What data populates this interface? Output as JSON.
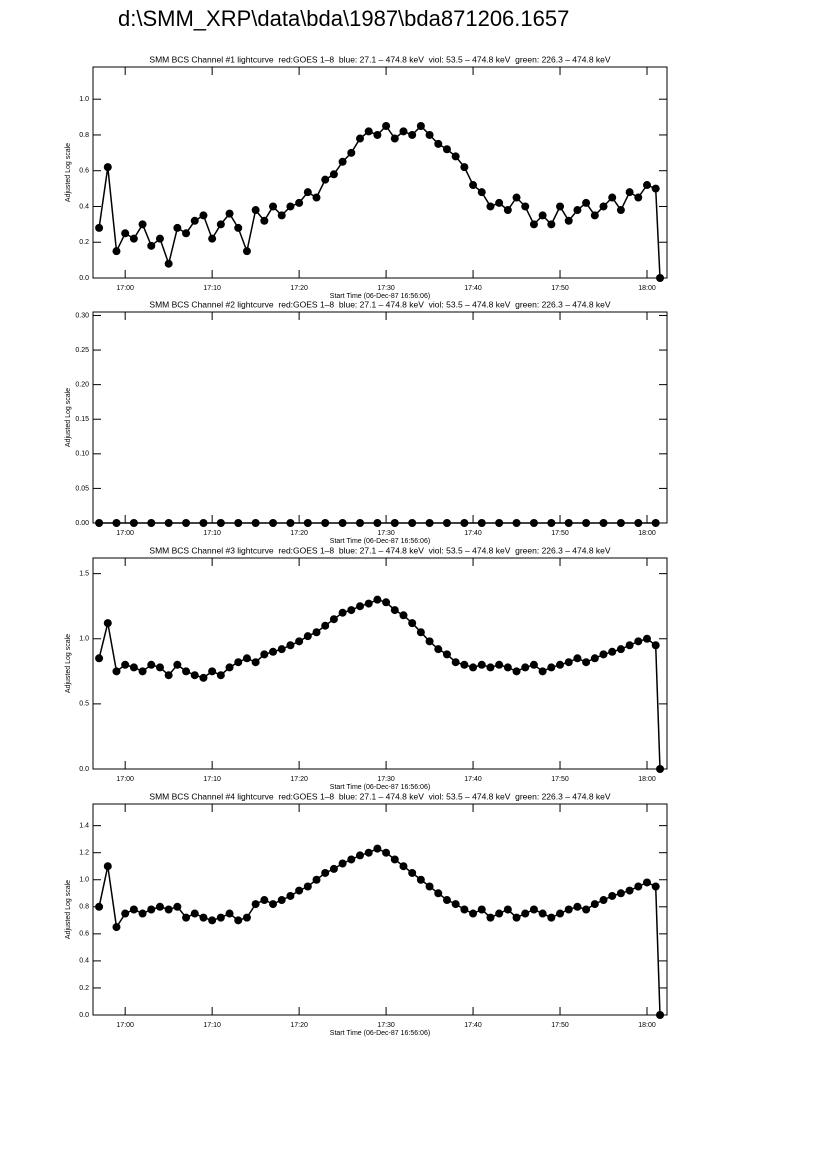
{
  "page_title": "d:\\SMM_XRP\\data\\bda\\1987\\bda871206.1657",
  "chart_data": [
    {
      "type": "line",
      "title": "SMM BCS Channel #1 lightcurve  red:GOES 1–8  blue: 27.1 – 474.8 keV  viol: 53.5 – 474.8 keV  green: 226.3 – 474.8 keV",
      "x_label": "Start Time (06-Dec-87 16:56:06)",
      "y_label": "Adjusted Log scale",
      "color": "#000000",
      "xlim": [
        1016.3,
        1082.3
      ],
      "xticks": [
        {
          "value": 1020,
          "label": "17:00"
        },
        {
          "value": 1030,
          "label": "17:10"
        },
        {
          "value": 1040,
          "label": "17:20"
        },
        {
          "value": 1050,
          "label": "17:30"
        },
        {
          "value": 1060,
          "label": "17:40"
        },
        {
          "value": 1070,
          "label": "17:50"
        },
        {
          "value": 1080,
          "label": "18:00"
        }
      ],
      "ylim": [
        0,
        1.18
      ],
      "yticks": [
        {
          "value": 0,
          "label": "0.0"
        },
        0.2,
        0.4,
        0.6,
        0.8,
        {
          "value": 1,
          "label": "1.0"
        }
      ],
      "x": [
        1017,
        1018,
        1019,
        1020,
        1021,
        1022,
        1023,
        1024,
        1025,
        1026,
        1027,
        1028,
        1029,
        1030,
        1031,
        1032,
        1033,
        1034,
        1035,
        1036,
        1037,
        1038,
        1039,
        1040,
        1041,
        1042,
        1043,
        1044,
        1045,
        1046,
        1047,
        1048,
        1049,
        1050,
        1051,
        1052,
        1053,
        1054,
        1055,
        1056,
        1057,
        1058,
        1059,
        1060,
        1061,
        1062,
        1063,
        1064,
        1065,
        1066,
        1067,
        1068,
        1069,
        1070,
        1071,
        1072,
        1073,
        1074,
        1075,
        1076,
        1077,
        1078,
        1079,
        1080,
        1081,
        1081.5
      ],
      "values": [
        0.28,
        0.62,
        0.15,
        0.25,
        0.22,
        0.3,
        0.18,
        0.22,
        0.08,
        0.28,
        0.25,
        0.32,
        0.35,
        0.22,
        0.3,
        0.36,
        0.28,
        0.15,
        0.38,
        0.32,
        0.4,
        0.35,
        0.4,
        0.42,
        0.48,
        0.45,
        0.55,
        0.58,
        0.65,
        0.7,
        0.78,
        0.82,
        0.8,
        0.85,
        0.78,
        0.82,
        0.8,
        0.85,
        0.8,
        0.75,
        0.72,
        0.68,
        0.62,
        0.52,
        0.48,
        0.4,
        0.42,
        0.38,
        0.45,
        0.4,
        0.3,
        0.35,
        0.3,
        0.4,
        0.32,
        0.38,
        0.42,
        0.35,
        0.4,
        0.45,
        0.38,
        0.48,
        0.45,
        0.52,
        0.5,
        0
      ]
    },
    {
      "type": "line",
      "title": "SMM BCS Channel #2 lightcurve  red:GOES 1–8  blue: 27.1 – 474.8 keV  viol: 53.5 – 474.8 keV  green: 226.3 – 474.8 keV",
      "x_label": "Start Time (06-Dec-87 16:56:06)",
      "y_label": "Adjusted Log scale",
      "color": "#000000",
      "xlim": [
        1016.3,
        1082.3
      ],
      "xticks": [
        {
          "value": 1020,
          "label": "17:00"
        },
        {
          "value": 1030,
          "label": "17:10"
        },
        {
          "value": 1040,
          "label": "17:20"
        },
        {
          "value": 1050,
          "label": "17:30"
        },
        {
          "value": 1060,
          "label": "17:40"
        },
        {
          "value": 1070,
          "label": "17:50"
        },
        {
          "value": 1080,
          "label": "18:00"
        }
      ],
      "ylim": [
        0,
        0.305
      ],
      "yticks": [
        {
          "value": 0,
          "label": "0.00"
        },
        0.05,
        {
          "value": 0.1,
          "label": "0.10"
        },
        0.15,
        {
          "value": 0.2,
          "label": "0.20"
        },
        0.25,
        {
          "value": 0.3,
          "label": "0.30"
        }
      ],
      "x": [
        1017,
        1019,
        1021,
        1023,
        1025,
        1027,
        1029,
        1031,
        1033,
        1035,
        1037,
        1039,
        1041,
        1043,
        1045,
        1047,
        1049,
        1051,
        1053,
        1055,
        1057,
        1059,
        1061,
        1063,
        1065,
        1067,
        1069,
        1071,
        1073,
        1075,
        1077,
        1079,
        1081
      ],
      "values": [
        0,
        0,
        0,
        0,
        0,
        0,
        0,
        0,
        0,
        0,
        0,
        0,
        0,
        0,
        0,
        0,
        0,
        0,
        0,
        0,
        0,
        0,
        0,
        0,
        0,
        0,
        0,
        0,
        0,
        0,
        0,
        0,
        0
      ]
    },
    {
      "type": "line",
      "title": "SMM BCS Channel #3 lightcurve  red:GOES 1–8  blue: 27.1 – 474.8 keV  viol: 53.5 – 474.8 keV  green: 226.3 – 474.8 keV",
      "x_label": "Start Time (06-Dec-87 16:56:06)",
      "y_label": "Adjusted Log scale",
      "color": "#000000",
      "xlim": [
        1016.3,
        1082.3
      ],
      "xticks": [
        {
          "value": 1020,
          "label": "17:00"
        },
        {
          "value": 1030,
          "label": "17:10"
        },
        {
          "value": 1040,
          "label": "17:20"
        },
        {
          "value": 1050,
          "label": "17:30"
        },
        {
          "value": 1060,
          "label": "17:40"
        },
        {
          "value": 1070,
          "label": "17:50"
        },
        {
          "value": 1080,
          "label": "18:00"
        }
      ],
      "ylim": [
        0,
        1.62
      ],
      "yticks": [
        {
          "value": 0,
          "label": "0.0"
        },
        0.5,
        {
          "value": 1,
          "label": "1.0"
        },
        1.5
      ],
      "x": [
        1017,
        1018,
        1019,
        1020,
        1021,
        1022,
        1023,
        1024,
        1025,
        1026,
        1027,
        1028,
        1029,
        1030,
        1031,
        1032,
        1033,
        1034,
        1035,
        1036,
        1037,
        1038,
        1039,
        1040,
        1041,
        1042,
        1043,
        1044,
        1045,
        1046,
        1047,
        1048,
        1049,
        1050,
        1051,
        1052,
        1053,
        1054,
        1055,
        1056,
        1057,
        1058,
        1059,
        1060,
        1061,
        1062,
        1063,
        1064,
        1065,
        1066,
        1067,
        1068,
        1069,
        1070,
        1071,
        1072,
        1073,
        1074,
        1075,
        1076,
        1077,
        1078,
        1079,
        1080,
        1081,
        1081.5
      ],
      "values": [
        0.85,
        1.12,
        0.75,
        0.8,
        0.78,
        0.75,
        0.8,
        0.78,
        0.72,
        0.8,
        0.75,
        0.72,
        0.7,
        0.75,
        0.72,
        0.78,
        0.82,
        0.85,
        0.82,
        0.88,
        0.9,
        0.92,
        0.95,
        0.98,
        1.02,
        1.05,
        1.1,
        1.15,
        1.2,
        1.22,
        1.25,
        1.27,
        1.3,
        1.28,
        1.22,
        1.18,
        1.12,
        1.05,
        0.98,
        0.92,
        0.88,
        0.82,
        0.8,
        0.78,
        0.8,
        0.78,
        0.8,
        0.78,
        0.75,
        0.78,
        0.8,
        0.75,
        0.78,
        0.8,
        0.82,
        0.85,
        0.82,
        0.85,
        0.88,
        0.9,
        0.92,
        0.95,
        0.98,
        1.0,
        0.95,
        0
      ]
    },
    {
      "type": "line",
      "title": "SMM BCS Channel #4 lightcurve  red:GOES 1–8  blue: 27.1 – 474.8 keV  viol: 53.5 – 474.8 keV  green: 226.3 – 474.8 keV",
      "x_label": "Start Time (06-Dec-87 16:56:06)",
      "y_label": "Adjusted Log scale",
      "color": "#000000",
      "xlim": [
        1016.3,
        1082.3
      ],
      "xticks": [
        {
          "value": 1020,
          "label": "17:00"
        },
        {
          "value": 1030,
          "label": "17:10"
        },
        {
          "value": 1040,
          "label": "17:20"
        },
        {
          "value": 1050,
          "label": "17:30"
        },
        {
          "value": 1060,
          "label": "17:40"
        },
        {
          "value": 1070,
          "label": "17:50"
        },
        {
          "value": 1080,
          "label": "18:00"
        }
      ],
      "ylim": [
        0,
        1.56
      ],
      "yticks": [
        {
          "value": 0,
          "label": "0.0"
        },
        0.2,
        0.4,
        0.6,
        0.8,
        {
          "value": 1,
          "label": "1.0"
        },
        1.2,
        1.4
      ],
      "x": [
        1017,
        1018,
        1019,
        1020,
        1021,
        1022,
        1023,
        1024,
        1025,
        1026,
        1027,
        1028,
        1029,
        1030,
        1031,
        1032,
        1033,
        1034,
        1035,
        1036,
        1037,
        1038,
        1039,
        1040,
        1041,
        1042,
        1043,
        1044,
        1045,
        1046,
        1047,
        1048,
        1049,
        1050,
        1051,
        1052,
        1053,
        1054,
        1055,
        1056,
        1057,
        1058,
        1059,
        1060,
        1061,
        1062,
        1063,
        1064,
        1065,
        1066,
        1067,
        1068,
        1069,
        1070,
        1071,
        1072,
        1073,
        1074,
        1075,
        1076,
        1077,
        1078,
        1079,
        1080,
        1081,
        1081.5
      ],
      "values": [
        0.8,
        1.1,
        0.65,
        0.75,
        0.78,
        0.75,
        0.78,
        0.8,
        0.78,
        0.8,
        0.72,
        0.75,
        0.72,
        0.7,
        0.72,
        0.75,
        0.7,
        0.72,
        0.82,
        0.85,
        0.82,
        0.85,
        0.88,
        0.92,
        0.95,
        1.0,
        1.05,
        1.08,
        1.12,
        1.15,
        1.18,
        1.2,
        1.23,
        1.2,
        1.15,
        1.1,
        1.05,
        1.0,
        0.95,
        0.9,
        0.85,
        0.82,
        0.78,
        0.75,
        0.78,
        0.72,
        0.75,
        0.78,
        0.72,
        0.75,
        0.78,
        0.75,
        0.72,
        0.75,
        0.78,
        0.8,
        0.78,
        0.82,
        0.85,
        0.88,
        0.9,
        0.92,
        0.95,
        0.98,
        0.95,
        0
      ]
    }
  ]
}
